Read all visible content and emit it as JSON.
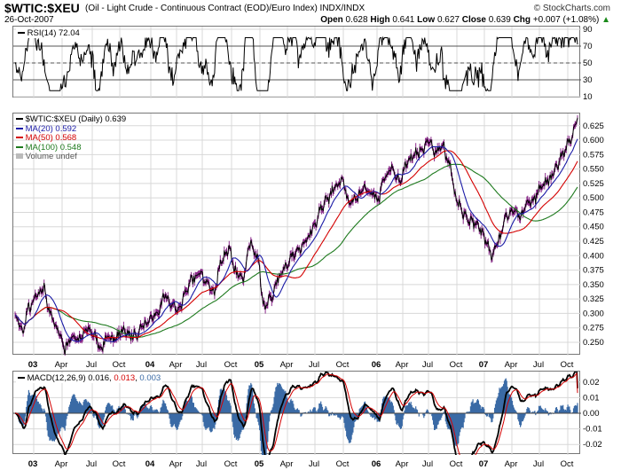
{
  "header": {
    "symbol": "$WTIC:$XEU",
    "description": "(Oil - Light Crude - Continuous Contract (EOD)/Euro Index)  INDX/INDX",
    "brand": "© StockCharts.com",
    "date": "26-Oct-2007",
    "open_label": "Open",
    "open": "0.628",
    "high_label": "High",
    "high": "0.641",
    "low_label": "Low",
    "low": "0.627",
    "close_label": "Close",
    "close": "0.639",
    "chg_label": "Chg",
    "chg": "+0.007 (+1.08%)",
    "chg_arrow": "▲"
  },
  "rsi_panel": {
    "label": "RSI(14) 72.04"
  },
  "price_panel": {
    "legend": [
      {
        "text": "$WTIC:$XEU (Daily) 0.639",
        "color": "#000000"
      },
      {
        "text": "MA(20) 0.592",
        "color": "#1a1aa6"
      },
      {
        "text": "MA(50) 0.568",
        "color": "#d40000"
      },
      {
        "text": "MA(100) 0.548",
        "color": "#1e7a1e"
      },
      {
        "text": "Volume undef",
        "color": "#555555"
      }
    ]
  },
  "macd_panel": {
    "label_main": "MACD(12,26,9) 0.016, ",
    "label_signal": "0.013",
    "label_sep": ", ",
    "label_hist": "0.003",
    "signal_color": "#d40000",
    "hist_color": "#3a6aa5"
  },
  "x_axis_labels": [
    "03",
    "Apr",
    "Jul",
    "Oct",
    "04",
    "Apr",
    "Jul",
    "Oct",
    "05",
    "Apr",
    "Jul",
    "Oct",
    "06",
    "Apr",
    "Jul",
    "Oct",
    "07",
    "Apr",
    "Jul",
    "Oct"
  ],
  "chart_data": [
    {
      "type": "line",
      "name": "RSI(14)",
      "ylim": [
        10,
        90
      ],
      "yticks": [
        90,
        70,
        50,
        30,
        10
      ],
      "reference_lines": [
        70,
        50,
        30
      ],
      "last_value": 72.04
    },
    {
      "type": "line",
      "title": "$WTIC:$XEU (Oil - Light Crude - Continuous Contract (EOD)/Euro Index)",
      "ylim": [
        0.23,
        0.64
      ],
      "yticks": [
        0.625,
        0.6,
        0.575,
        0.55,
        0.525,
        0.5,
        0.475,
        0.45,
        0.425,
        0.4,
        0.375,
        0.35,
        0.325,
        0.3,
        0.275,
        0.25
      ],
      "x_quarter_labels": [
        "03",
        "Apr",
        "Jul",
        "Oct",
        "04",
        "Apr",
        "Jul",
        "Oct",
        "05",
        "Apr",
        "Jul",
        "Oct",
        "06",
        "Apr",
        "Jul",
        "Oct",
        "07",
        "Apr",
        "Jul",
        "Oct"
      ],
      "close_anchors": [
        0.295,
        0.27,
        0.31,
        0.33,
        0.345,
        0.3,
        0.27,
        0.24,
        0.26,
        0.255,
        0.27,
        0.265,
        0.24,
        0.26,
        0.255,
        0.27,
        0.265,
        0.26,
        0.28,
        0.29,
        0.3,
        0.33,
        0.315,
        0.31,
        0.34,
        0.36,
        0.37,
        0.35,
        0.34,
        0.39,
        0.41,
        0.37,
        0.36,
        0.42,
        0.4,
        0.31,
        0.33,
        0.36,
        0.38,
        0.4,
        0.41,
        0.43,
        0.45,
        0.48,
        0.5,
        0.52,
        0.53,
        0.49,
        0.5,
        0.52,
        0.51,
        0.5,
        0.54,
        0.55,
        0.53,
        0.56,
        0.575,
        0.58,
        0.6,
        0.58,
        0.59,
        0.56,
        0.5,
        0.47,
        0.46,
        0.45,
        0.43,
        0.4,
        0.43,
        0.47,
        0.48,
        0.47,
        0.49,
        0.5,
        0.52,
        0.53,
        0.55,
        0.58,
        0.6,
        0.639
      ],
      "series": [
        {
          "name": "$WTIC:$XEU (Daily)",
          "last": 0.639
        },
        {
          "name": "MA(20)",
          "last": 0.592
        },
        {
          "name": "MA(50)",
          "last": 0.568
        },
        {
          "name": "MA(100)",
          "last": 0.548
        }
      ]
    },
    {
      "type": "line",
      "name": "MACD(12,26,9)",
      "ylim": [
        -0.025,
        0.025
      ],
      "yticks": [
        0.02,
        0.01,
        0.0,
        -0.01,
        -0.02
      ],
      "macd": 0.016,
      "signal": 0.013,
      "histogram": 0.003
    }
  ]
}
